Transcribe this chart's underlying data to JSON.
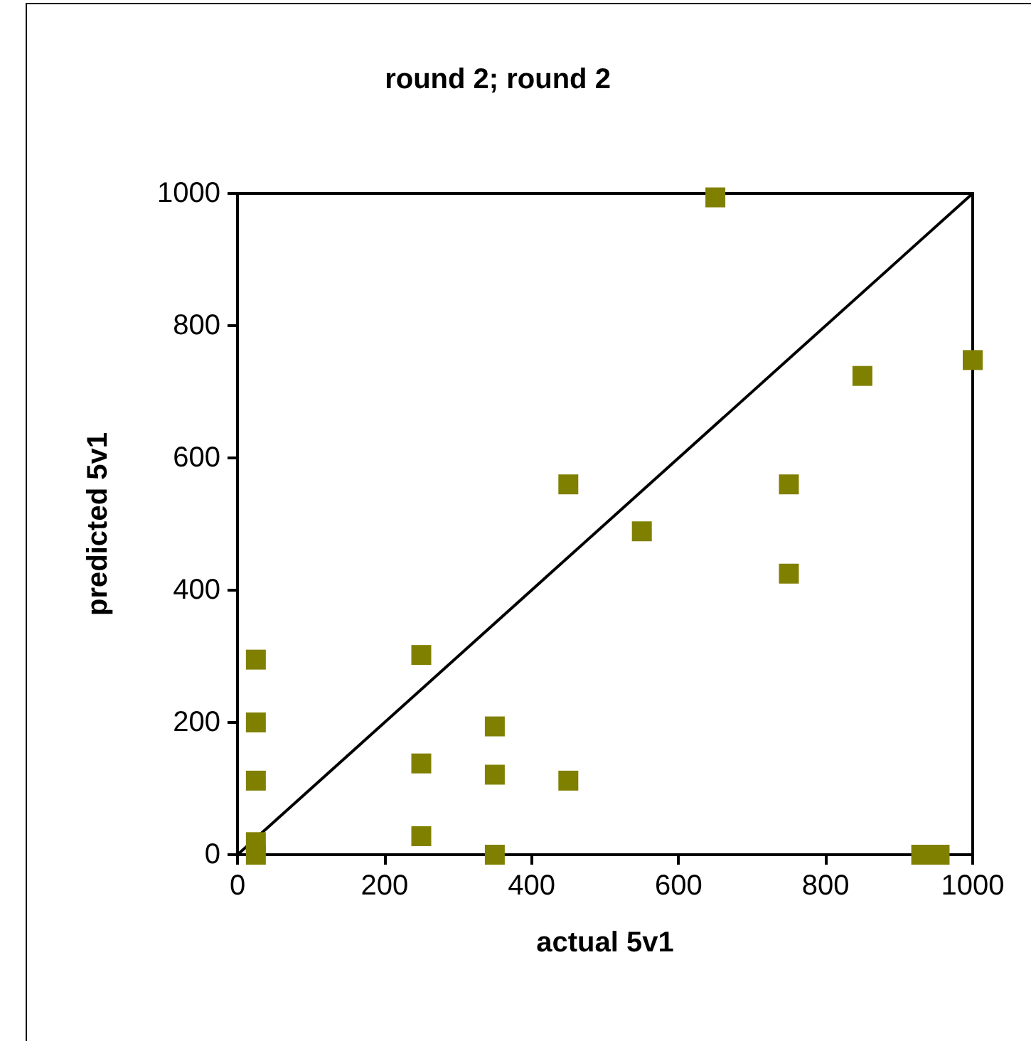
{
  "chart_data": {
    "type": "scatter",
    "title": "round 2; round 2",
    "xlabel": "actual 5v1",
    "ylabel": "predicted 5v1",
    "xlim": [
      0,
      1000
    ],
    "ylim": [
      0,
      1000
    ],
    "xticks": [
      0,
      200,
      400,
      600,
      800,
      1000
    ],
    "yticks": [
      0,
      200,
      400,
      600,
      800,
      1000
    ],
    "grid": false,
    "marker": "square",
    "series": [
      {
        "color": "#808000",
        "x": [
          25,
          25,
          25,
          25,
          25,
          250,
          250,
          250,
          350,
          350,
          350,
          450,
          450,
          550,
          650,
          750,
          750,
          850,
          1000,
          930,
          955
        ],
        "values": [
          295,
          200,
          112,
          19,
          0,
          302,
          138,
          28,
          194,
          121,
          0,
          112,
          560,
          489,
          994,
          560,
          425,
          724,
          748,
          0,
          0
        ]
      },
      {
        "type": "line",
        "color": "#000000",
        "line_style": "solid",
        "marker": "none",
        "x": [
          0,
          1000
        ],
        "values": [
          0,
          1000
        ]
      }
    ]
  }
}
